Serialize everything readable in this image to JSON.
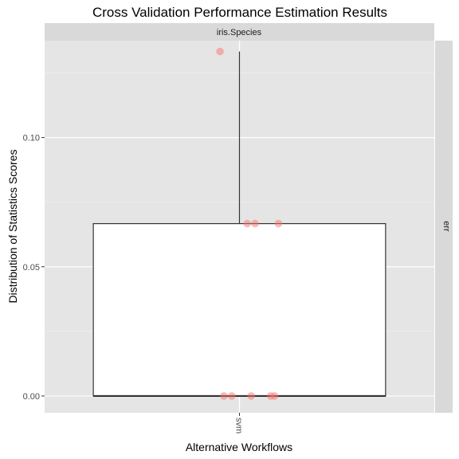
{
  "chart_data": {
    "type": "box",
    "title": "Cross Validation Performance Estimation Results",
    "xlabel": "Alternative Workflows",
    "ylabel": "Distribution of Statistics Scores",
    "facet_top": "iris.Species",
    "facet_right": "err",
    "categories": [
      "svm"
    ],
    "ylim": [
      -0.0065,
      0.1375
    ],
    "yticks": [
      0.0,
      0.05,
      0.1
    ],
    "ytick_labels": [
      "0.00",
      "0.05",
      "0.10"
    ],
    "grid": true,
    "box": {
      "category": "svm",
      "min": 0.0,
      "q1": 0.0,
      "median": 0.0,
      "q3": 0.0667,
      "max": 0.1333
    },
    "points": [
      {
        "category": "svm",
        "jitter": -0.05,
        "value": 0.1333
      },
      {
        "category": "svm",
        "jitter": 0.02,
        "value": 0.0667
      },
      {
        "category": "svm",
        "jitter": 0.04,
        "value": 0.0667
      },
      {
        "category": "svm",
        "jitter": 0.1,
        "value": 0.0667
      },
      {
        "category": "svm",
        "jitter": -0.04,
        "value": 0.0
      },
      {
        "category": "svm",
        "jitter": -0.02,
        "value": 0.0
      },
      {
        "category": "svm",
        "jitter": 0.03,
        "value": 0.0
      },
      {
        "category": "svm",
        "jitter": 0.08,
        "value": 0.0
      },
      {
        "category": "svm",
        "jitter": 0.09,
        "value": 0.0
      }
    ],
    "point_color": "#f8766d"
  }
}
